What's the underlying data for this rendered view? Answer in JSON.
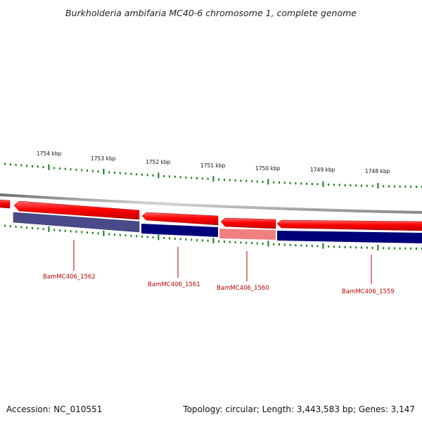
{
  "title": "Burkholderia ambifaria MC40-6 chromosome 1, complete genome",
  "footer": {
    "accession": "Accession: NC_010551",
    "stats": "Topology: circular; Length: 3,443,583 bp; Genes: 3,147"
  },
  "ruler": {
    "unit_suffix": " kbp",
    "labels_kbp": [
      1754,
      1753,
      1752,
      1751,
      1750,
      1749,
      1748
    ]
  },
  "genes": [
    {
      "name": "BamMC406_1562"
    },
    {
      "name": "BamMC406_1561"
    },
    {
      "name": "BamMC406_1560"
    },
    {
      "name": "BamMC406_1559"
    }
  ],
  "colors": {
    "cds": "#ff0000",
    "cds_shadow": "#b00000",
    "gene_dark": "#00007a",
    "gene_light": "#4a4a8a",
    "highlight": "#f08080",
    "backbone": "#8c8c8c",
    "tick": "#1a7a1a",
    "label": "#c00000"
  }
}
